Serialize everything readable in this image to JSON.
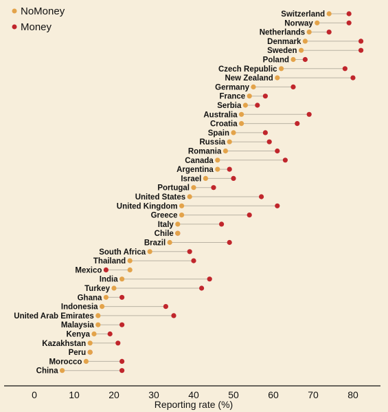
{
  "colors": {
    "background": "#f7eedb",
    "nomoney": "#e3a34a",
    "money": "#c0262c",
    "connector": "#b9b2a3",
    "axis": "#111111"
  },
  "chart_data": {
    "type": "dumbbell",
    "xlabel": "Reporting rate (%)",
    "xticks": [
      0,
      10,
      20,
      30,
      40,
      50,
      60,
      70,
      80
    ],
    "xlim": [
      -8,
      86
    ],
    "legend_position": "top-left",
    "grid": false,
    "series": [
      {
        "name": "NoMoney",
        "key": "nomoney"
      },
      {
        "name": "Money",
        "key": "money"
      }
    ],
    "countries": [
      {
        "name": "Switzerland",
        "nomoney": 74,
        "money": 79
      },
      {
        "name": "Norway",
        "nomoney": 71,
        "money": 79
      },
      {
        "name": "Netherlands",
        "nomoney": 69,
        "money": 74
      },
      {
        "name": "Denmark",
        "nomoney": 68,
        "money": 82
      },
      {
        "name": "Sweden",
        "nomoney": 67,
        "money": 82
      },
      {
        "name": "Poland",
        "nomoney": 65,
        "money": 68
      },
      {
        "name": "Czech Republic",
        "nomoney": 62,
        "money": 78
      },
      {
        "name": "New Zealand",
        "nomoney": 61,
        "money": 80
      },
      {
        "name": "Germany",
        "nomoney": 55,
        "money": 65
      },
      {
        "name": "France",
        "nomoney": 54,
        "money": 58
      },
      {
        "name": "Serbia",
        "nomoney": 53,
        "money": 56
      },
      {
        "name": "Australia",
        "nomoney": 52,
        "money": 69
      },
      {
        "name": "Croatia",
        "nomoney": 52,
        "money": 66
      },
      {
        "name": "Spain",
        "nomoney": 50,
        "money": 58
      },
      {
        "name": "Russia",
        "nomoney": 49,
        "money": 59
      },
      {
        "name": "Romania",
        "nomoney": 48,
        "money": 61
      },
      {
        "name": "Canada",
        "nomoney": 46,
        "money": 63
      },
      {
        "name": "Argentina",
        "nomoney": 46,
        "money": 49
      },
      {
        "name": "Israel",
        "nomoney": 43,
        "money": 50
      },
      {
        "name": "Portugal",
        "nomoney": 40,
        "money": 45
      },
      {
        "name": "United States",
        "nomoney": 39,
        "money": 57
      },
      {
        "name": "United Kingdom",
        "nomoney": 37,
        "money": 61
      },
      {
        "name": "Greece",
        "nomoney": 37,
        "money": 54
      },
      {
        "name": "Italy",
        "nomoney": 36,
        "money": 47
      },
      {
        "name": "Chile",
        "nomoney": 36,
        "money": 36
      },
      {
        "name": "Brazil",
        "nomoney": 34,
        "money": 49
      },
      {
        "name": "South Africa",
        "nomoney": 29,
        "money": 39
      },
      {
        "name": "Thailand",
        "nomoney": 24,
        "money": 40
      },
      {
        "name": "Mexico",
        "nomoney": 24,
        "money": 18
      },
      {
        "name": "India",
        "nomoney": 22,
        "money": 44
      },
      {
        "name": "Turkey",
        "nomoney": 20,
        "money": 42
      },
      {
        "name": "Ghana",
        "nomoney": 18,
        "money": 22
      },
      {
        "name": "Indonesia",
        "nomoney": 17,
        "money": 33
      },
      {
        "name": "United Arab Emirates",
        "nomoney": 16,
        "money": 35
      },
      {
        "name": "Malaysia",
        "nomoney": 16,
        "money": 22
      },
      {
        "name": "Kenya",
        "nomoney": 15,
        "money": 19
      },
      {
        "name": "Kazakhstan",
        "nomoney": 14,
        "money": 21
      },
      {
        "name": "Peru",
        "nomoney": 14,
        "money": 14
      },
      {
        "name": "Morocco",
        "nomoney": 13,
        "money": 22
      },
      {
        "name": "China",
        "nomoney": 7,
        "money": 22
      }
    ]
  }
}
